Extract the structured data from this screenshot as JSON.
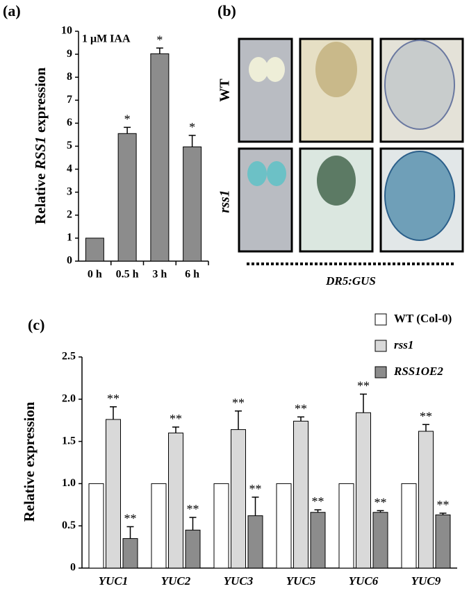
{
  "chart_data": [
    {
      "type": "bar",
      "panel_label": "(a)",
      "annotation": "1 μM IAA",
      "ylabel": [
        "Relative ",
        "RSS1",
        " expression"
      ],
      "categories": [
        "0 h",
        "0.5 h",
        "3 h",
        "6 h"
      ],
      "series": [
        {
          "name": null,
          "color": "#8c8c8c",
          "values": [
            1,
            5.55,
            9.02,
            4.97
          ],
          "errors": [
            null,
            0.27,
            0.25,
            0.5
          ],
          "significance": [
            null,
            "*",
            "*",
            "*"
          ]
        }
      ],
      "ylim": [
        0,
        10
      ],
      "yticks": [
        0,
        1,
        2,
        3,
        4,
        5,
        6,
        7,
        8,
        9,
        10
      ]
    },
    {
      "type": "grouped-bar",
      "panel_label": "(c)",
      "ylabel": [
        "Relative expression"
      ],
      "categories": [
        "YUC1",
        "YUC2",
        "YUC3",
        "YUC5",
        "YUC6",
        "YUC9"
      ],
      "series": [
        {
          "name": "WT (Col-0)",
          "italic": false,
          "color": "#ffffff",
          "values": [
            1,
            1,
            1,
            1,
            1,
            1
          ],
          "errors": [
            null,
            null,
            null,
            null,
            null,
            null
          ],
          "significance": [
            null,
            null,
            null,
            null,
            null,
            null
          ]
        },
        {
          "name": "rss1",
          "italic": true,
          "color": "#d9d9d9",
          "values": [
            1.76,
            1.6,
            1.64,
            1.74,
            1.84,
            1.62
          ],
          "errors": [
            0.15,
            0.07,
            0.22,
            0.05,
            0.22,
            0.08
          ],
          "significance": [
            "**",
            "**",
            "**",
            "**",
            "**",
            "**"
          ]
        },
        {
          "name": "RSS1OE2",
          "italic": true,
          "color": "#8c8c8c",
          "values": [
            0.35,
            0.45,
            0.62,
            0.66,
            0.66,
            0.63
          ],
          "errors": [
            0.14,
            0.15,
            0.22,
            0.03,
            0.02,
            0.02
          ],
          "significance": [
            "**",
            "**",
            "**",
            "**",
            "**",
            "**"
          ]
        }
      ],
      "ylim": [
        0,
        2.5
      ],
      "yticks": [
        0,
        0.5,
        {
          "value": 1,
          "label": "1.0"
        },
        1.5,
        {
          "value": 2,
          "label": "2.0"
        },
        2.5
      ],
      "legend": "top-right"
    }
  ],
  "panel_b": {
    "label": "(b)",
    "rows": [
      "WT",
      "rss1"
    ],
    "caption": "DR5:GUS"
  }
}
